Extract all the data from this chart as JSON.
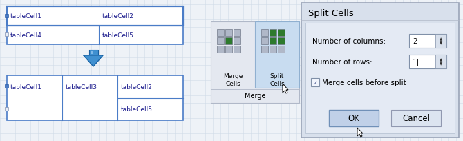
{
  "bg_color": "#eef2f7",
  "grid_color": "#d0dce8",
  "table_border": "#4a7cc7",
  "table_border_dark": "#2a5ca7",
  "table_bg": "#ffffff",
  "cell_text_color": "#000000",
  "dialog_bg": "#d8e0ec",
  "dialog_inner_bg": "#e4eaf4",
  "dialog_border": "#9aa4b8",
  "dialog_title": "Split Cells",
  "dialog_label1": "Number of columns:",
  "dialog_label2": "Number of rows:",
  "dialog_label3": "Merge cells before split",
  "dialog_val1": "2",
  "dialog_val2": "1|",
  "btn_ok": "OK",
  "btn_cancel": "Cancel",
  "btn_ok_bg": "#c0d0e8",
  "btn_cancel_bg": "#dce4f0",
  "merge_label": "Merge\nCells",
  "split_label": "Split\nCells",
  "merge_group": "Merge",
  "green_dark": "#2d7a2d",
  "gray_icon": "#b0b8c8",
  "icon_highlight": "#c8dcf0",
  "toolbar_bg": "#e4e8f0",
  "toolbar_border": "#b0b8c8",
  "arrow_color": "#4090d0",
  "arrow_edge": "#1a60a0",
  "top_table_cells": [
    [
      "tableCell1",
      "tableCell2"
    ],
    [
      "tableCell4",
      "tableCell5"
    ]
  ],
  "bottom_table_cells_row1": [
    "tableCell1",
    "tableCell3",
    "tableCell2"
  ],
  "bottom_table_cells_row2": [
    "",
    "",
    "tableCell5"
  ],
  "font_size": 6.5,
  "cell_font_color": "#1a1a8c"
}
